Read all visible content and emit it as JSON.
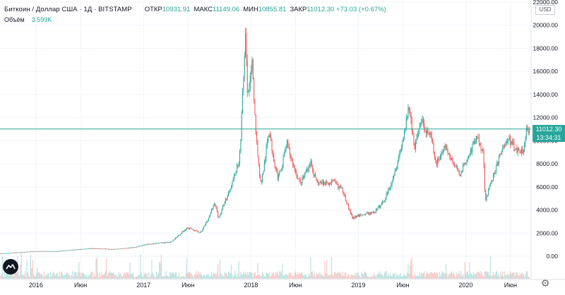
{
  "header": {
    "symbol": "Биткоин / Доллар США · 1Д · BITSTAMP",
    "ohlc": [
      {
        "label": "ОТКР",
        "value": "10931.91"
      },
      {
        "label": "МАКС",
        "value": "11149.06"
      },
      {
        "label": "МИН",
        "value": "10855.81"
      },
      {
        "label": "ЗАКР",
        "value": "11012.30 +73.03 (+0.67%)"
      }
    ],
    "volume_label": "Объём",
    "volume_value": "3.599K"
  },
  "currency_button": "USD",
  "last_price_label": "11012.30",
  "countdown_label": "13:34:31",
  "colors": {
    "up": "#26a69a",
    "down": "#ef5350",
    "grid": "#f0f3fa",
    "axis_text": "#131722",
    "last_price_line": "#26a69a"
  },
  "icons": {
    "logo": "tradingview-logo-icon",
    "settings": "gear-icon"
  },
  "chart_data": {
    "type": "candlestick",
    "title": "Биткоин / Доллар США · 1Д · BITSTAMP",
    "ylim": [
      0,
      22000
    ],
    "yticks": [
      0,
      2000,
      4000,
      6000,
      8000,
      10000,
      12000,
      14000,
      16000,
      18000,
      20000,
      22000
    ],
    "ytick_labels": [
      "0.00",
      "2000.00",
      "4000.00",
      "6000.00",
      "8000.00",
      "10000.00",
      "12000.00",
      "14000.00",
      "16000.00",
      "18000.00",
      "20000.00",
      "22000.00"
    ],
    "xtick_labels": [
      "2016",
      "Июн",
      "2017",
      "Июн",
      "2018",
      "Июн",
      "2019",
      "Июн",
      "2020",
      "Июн"
    ],
    "x_range": [
      "2015-09-01",
      "2020-08-10"
    ],
    "last_price": 11012.3,
    "approximate_close_path": [
      [
        "2015-09-01",
        230
      ],
      [
        "2015-12-01",
        380
      ],
      [
        "2016-01-01",
        430
      ],
      [
        "2016-03-01",
        420
      ],
      [
        "2016-06-01",
        600
      ],
      [
        "2016-07-01",
        670
      ],
      [
        "2016-10-01",
        620
      ],
      [
        "2016-12-01",
        760
      ],
      [
        "2017-01-01",
        980
      ],
      [
        "2017-03-01",
        1150
      ],
      [
        "2017-04-01",
        1200
      ],
      [
        "2017-05-01",
        1800
      ],
      [
        "2017-06-01",
        2500
      ],
      [
        "2017-07-15",
        2000
      ],
      [
        "2017-08-01",
        2800
      ],
      [
        "2017-09-01",
        4700
      ],
      [
        "2017-09-15",
        3300
      ],
      [
        "2017-10-01",
        4400
      ],
      [
        "2017-11-01",
        6500
      ],
      [
        "2017-11-25",
        8500
      ],
      [
        "2017-12-07",
        15000
      ],
      [
        "2017-12-17",
        19500
      ],
      [
        "2017-12-22",
        13800
      ],
      [
        "2018-01-06",
        17000
      ],
      [
        "2018-02-06",
        6200
      ],
      [
        "2018-03-05",
        11000
      ],
      [
        "2018-04-06",
        6700
      ],
      [
        "2018-05-05",
        9800
      ],
      [
        "2018-06-20",
        6300
      ],
      [
        "2018-07-25",
        8200
      ],
      [
        "2018-08-15",
        6300
      ],
      [
        "2018-10-15",
        6400
      ],
      [
        "2018-11-15",
        5600
      ],
      [
        "2018-12-15",
        3300
      ],
      [
        "2019-01-15",
        3600
      ],
      [
        "2019-03-01",
        3800
      ],
      [
        "2019-04-03",
        4900
      ],
      [
        "2019-05-15",
        8000
      ],
      [
        "2019-06-26",
        12900
      ],
      [
        "2019-07-15",
        9500
      ],
      [
        "2019-08-05",
        11800
      ],
      [
        "2019-09-10",
        10200
      ],
      [
        "2019-09-25",
        8000
      ],
      [
        "2019-10-27",
        9500
      ],
      [
        "2019-12-15",
        7100
      ],
      [
        "2020-01-15",
        8800
      ],
      [
        "2020-02-13",
        10350
      ],
      [
        "2020-03-05",
        9000
      ],
      [
        "2020-03-12",
        4900
      ],
      [
        "2020-04-01",
        6500
      ],
      [
        "2020-04-30",
        8700
      ],
      [
        "2020-05-10",
        9500
      ],
      [
        "2020-06-01",
        10100
      ],
      [
        "2020-06-25",
        9200
      ],
      [
        "2020-07-20",
        9200
      ],
      [
        "2020-07-28",
        11000
      ],
      [
        "2020-08-10",
        11012.3
      ]
    ]
  }
}
